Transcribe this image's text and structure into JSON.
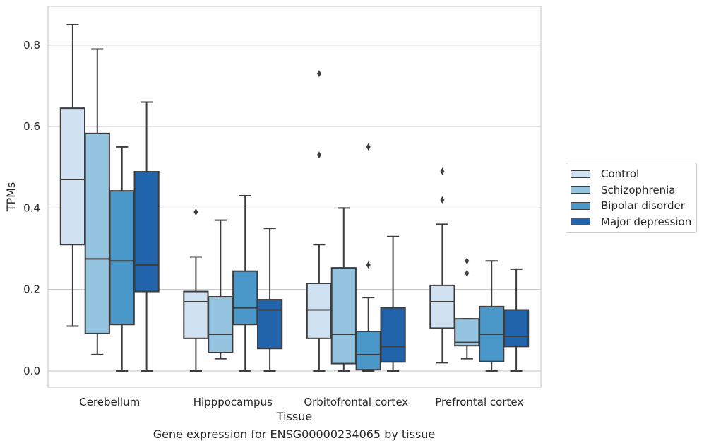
{
  "caption": "Gene expression for ENSG00000234065 by tissue",
  "chart_data": {
    "type": "box",
    "title": "",
    "xlabel": "Tissue",
    "ylabel": "TPMs",
    "ylim": [
      -0.04,
      0.895
    ],
    "yticks": [
      0.0,
      0.2,
      0.4,
      0.6,
      0.8
    ],
    "ytick_labels": [
      "0.0",
      "0.2",
      "0.4",
      "0.6",
      "0.8"
    ],
    "grid": "horizontal",
    "legend_position": "right, outside plot",
    "categories": [
      "Cerebellum",
      "Hipppocampus",
      "Orbitofrontal cortex",
      "Prefrontal cortex"
    ],
    "series": [
      {
        "name": "Control",
        "color": "#d0e1f2",
        "boxes": [
          {
            "whislo": 0.11,
            "q1": 0.31,
            "med": 0.47,
            "q3": 0.645,
            "whishi": 0.85,
            "fliers": []
          },
          {
            "whislo": 0.0,
            "q1": 0.08,
            "med": 0.17,
            "q3": 0.195,
            "whishi": 0.28,
            "fliers": [
              0.39
            ]
          },
          {
            "whislo": 0.0,
            "q1": 0.08,
            "med": 0.15,
            "q3": 0.215,
            "whishi": 0.31,
            "fliers": [
              0.53,
              0.73
            ]
          },
          {
            "whislo": 0.02,
            "q1": 0.105,
            "med": 0.17,
            "q3": 0.21,
            "whishi": 0.36,
            "fliers": [
              0.42,
              0.49
            ]
          }
        ]
      },
      {
        "name": "Schizophrenia",
        "color": "#94c4df",
        "boxes": [
          {
            "whislo": 0.04,
            "q1": 0.092,
            "med": 0.275,
            "q3": 0.583,
            "whishi": 0.79,
            "fliers": []
          },
          {
            "whislo": 0.03,
            "q1": 0.045,
            "med": 0.09,
            "q3": 0.182,
            "whishi": 0.37,
            "fliers": []
          },
          {
            "whislo": 0.0,
            "q1": 0.018,
            "med": 0.09,
            "q3": 0.253,
            "whishi": 0.4,
            "fliers": []
          },
          {
            "whislo": 0.03,
            "q1": 0.062,
            "med": 0.07,
            "q3": 0.128,
            "whishi": 0.128,
            "fliers": [
              0.24,
              0.27
            ]
          }
        ]
      },
      {
        "name": "Bipolar disorder",
        "color": "#4a98c9",
        "boxes": [
          {
            "whislo": 0.0,
            "q1": 0.114,
            "med": 0.27,
            "q3": 0.442,
            "whishi": 0.55,
            "fliers": []
          },
          {
            "whislo": 0.0,
            "q1": 0.114,
            "med": 0.155,
            "q3": 0.245,
            "whishi": 0.43,
            "fliers": []
          },
          {
            "whislo": 0.0,
            "q1": 0.003,
            "med": 0.04,
            "q3": 0.097,
            "whishi": 0.18,
            "fliers": [
              0.26,
              0.55
            ]
          },
          {
            "whislo": 0.0,
            "q1": 0.023,
            "med": 0.09,
            "q3": 0.158,
            "whishi": 0.27,
            "fliers": []
          }
        ]
      },
      {
        "name": "Major depression",
        "color": "#2164ab",
        "boxes": [
          {
            "whislo": 0.0,
            "q1": 0.195,
            "med": 0.26,
            "q3": 0.489,
            "whishi": 0.66,
            "fliers": []
          },
          {
            "whislo": 0.0,
            "q1": 0.055,
            "med": 0.15,
            "q3": 0.175,
            "whishi": 0.35,
            "fliers": []
          },
          {
            "whislo": 0.0,
            "q1": 0.022,
            "med": 0.06,
            "q3": 0.155,
            "whishi": 0.33,
            "fliers": []
          },
          {
            "whislo": 0.0,
            "q1": 0.06,
            "med": 0.085,
            "q3": 0.15,
            "whishi": 0.25,
            "fliers": []
          }
        ]
      }
    ]
  }
}
